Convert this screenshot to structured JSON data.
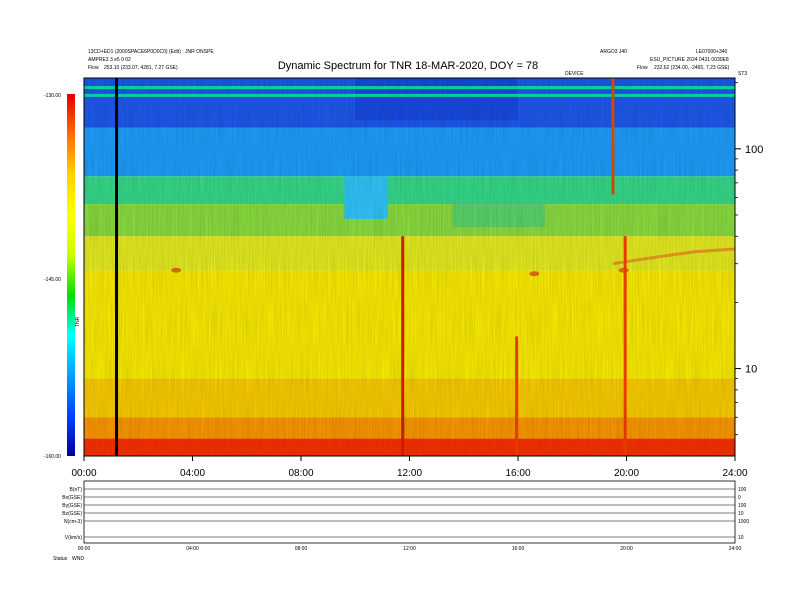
{
  "header": {
    "title": "Dynamic Spectrum for TNR 18-MAR-2020, DOY = 78",
    "left_line1": "13CD+ED1 (2000SPACE6P0D0C0) (Edit) : JNR ONSPE",
    "left_line2": "AMPRE3 3 e5 0 02",
    "left_line3_label": "Flow",
    "left_line3": "253.10 (233.07, 4281, 7.27 GSE)",
    "right_line1": "ARGO3 J40",
    "right_line1b": "LE07000+340",
    "right_line2": "ESU_PICTURE 2024 0431 0030E8",
    "right_line3_label": "Flow",
    "right_line3": "232.62 (234.00, -2465, 7.23 GSE)",
    "right_corner": "ST3",
    "event_label": "DEVICE"
  },
  "colorbar": {
    "top_label": "-130.00",
    "mid_label": "-145.00",
    "bottom_label": "-160.00",
    "axis_label": "TNR",
    "stops": [
      "#e00000",
      "#ff6a00",
      "#ffd200",
      "#ffff00",
      "#c8ff00",
      "#00e000",
      "#00ffff",
      "#00a0ff",
      "#0040ff",
      "#0000a0"
    ]
  },
  "chart_data": {
    "type": "heatmap",
    "title": "Dynamic Spectrum for TNR 18-MAR-2020, DOY = 78",
    "x_tick_labels": [
      "00:00",
      "04:00",
      "08:00",
      "12:00",
      "16:00",
      "20:00",
      "24:00"
    ],
    "x_range_hours": [
      0,
      24
    ],
    "y_scale": "log",
    "y_tick_labels": [
      "100",
      "10"
    ],
    "y_ticks": [
      100,
      10
    ],
    "y_range_khz": [
      4,
      210
    ],
    "colorbar_range_db": [
      -160,
      -130
    ],
    "colorbar_ticks": [
      -160,
      -145,
      -130
    ],
    "layers": [
      {
        "y_from": 210,
        "y_to": 125,
        "color": "#1e5af0"
      },
      {
        "y_from": 125,
        "y_to": 75,
        "color": "#1ea0ff"
      },
      {
        "y_from": 75,
        "y_to": 56,
        "color": "#36dc8c"
      },
      {
        "y_from": 56,
        "y_to": 40,
        "color": "#8ce040"
      },
      {
        "y_from": 40,
        "y_to": 28,
        "color": "#e8f020"
      },
      {
        "y_from": 28,
        "y_to": 9,
        "color": "#fff000"
      },
      {
        "y_from": 9,
        "y_to": 6,
        "color": "#ffd000"
      },
      {
        "y_from": 6,
        "y_to": 4.8,
        "color": "#ff9a00"
      },
      {
        "y_from": 4.8,
        "y_to": 4,
        "color": "#ff3000"
      }
    ],
    "bright_bands": [
      {
        "y": 190,
        "color": "#00ff9a"
      },
      {
        "y": 175,
        "color": "#00ff9a"
      }
    ],
    "noise_band_top": {
      "y_from": 135,
      "y_to": 210,
      "t_from": 10,
      "t_to": 16,
      "color": "#1444e0"
    },
    "cyan_notch": {
      "t_from": 9.6,
      "t_to": 11.2,
      "y_from": 75,
      "y_to": 48,
      "color": "#30c8ff"
    },
    "green_notch": {
      "t_from": 13.6,
      "t_to": 17.0,
      "y_from": 56,
      "y_to": 44,
      "color": "#5cd86c"
    },
    "black_line_hour": 1.2,
    "bursts": [
      {
        "hour": 11.75,
        "y_top": 40,
        "y_bottom": 4,
        "color": "#e02000"
      },
      {
        "hour": 15.95,
        "y_top": 14,
        "y_bottom": 4,
        "color": "#ff4000"
      },
      {
        "hour": 19.5,
        "y_top": 210,
        "y_bottom": 62,
        "color": "#e85000"
      },
      {
        "hour": 19.95,
        "y_top": 40,
        "y_bottom": 4,
        "color": "#ff4000"
      }
    ],
    "emission_streak": [
      {
        "hour": 19.5,
        "y": 30
      },
      {
        "hour": 21,
        "y": 32
      },
      {
        "hour": 22.5,
        "y": 34
      },
      {
        "hour": 24,
        "y": 35
      }
    ],
    "spots": [
      {
        "hour": 3.4,
        "y": 28
      },
      {
        "hour": 16.6,
        "y": 27
      },
      {
        "hour": 19.9,
        "y": 28
      }
    ]
  },
  "bottom_panel": {
    "row_labels": [
      "B(nT)",
      "Bx(GSE)",
      "By(GSE)",
      "Bz(GSE)",
      "N(cm-3)",
      "V(km/s)"
    ],
    "right_values": [
      "100",
      "0",
      "100",
      "10",
      "1000",
      "10"
    ],
    "x_tick_labels": [
      "00:00",
      "04:00",
      "08:00",
      "12:00",
      "16:00",
      "20:00",
      "24:00"
    ],
    "footer_label": "Status",
    "footer_value": "WND"
  }
}
